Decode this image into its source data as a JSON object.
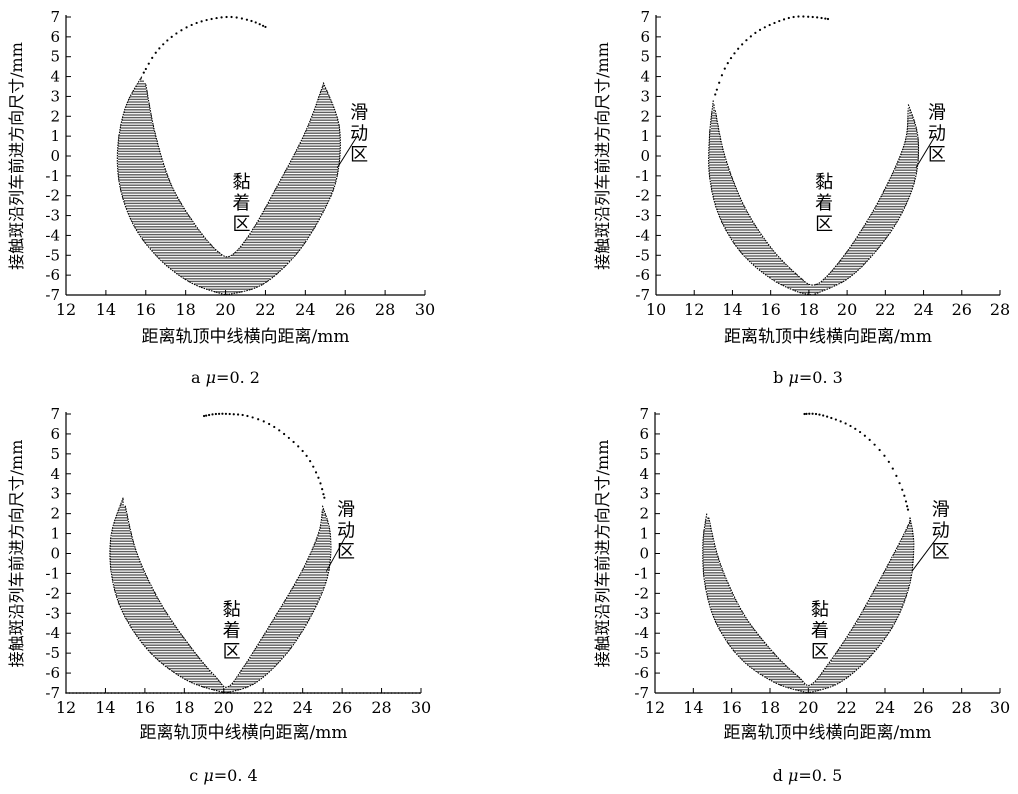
{
  "charts": [
    {
      "id": "a",
      "caption_letter": "a",
      "caption_value": "=0. 2",
      "xlabel": "距离轨顶中线横向距离/mm",
      "ylabel": "接触斑沿列车前进方向尺寸/mm",
      "xlim": [
        12,
        30
      ],
      "xticks": [
        12,
        14,
        16,
        18,
        20,
        22,
        24,
        26,
        28,
        30
      ],
      "ylim": [
        -7,
        7
      ],
      "yticks": [
        -7,
        -6,
        -5,
        -4,
        -3,
        -2,
        -1,
        0,
        1,
        2,
        3,
        4,
        5,
        6,
        7
      ],
      "slip_label": [
        "滑",
        "动",
        "区"
      ],
      "adhesion_label": [
        "黏",
        "着",
        "区"
      ]
    },
    {
      "id": "b",
      "caption_letter": "b",
      "caption_value": "=0. 3",
      "xlabel": "距离轨顶中线横向距离/mm",
      "ylabel": "接触斑沿列车前进方向尺寸/mm",
      "xlim": [
        10,
        28
      ],
      "xticks": [
        10,
        12,
        14,
        16,
        18,
        20,
        22,
        24,
        26,
        28
      ],
      "ylim": [
        -7,
        7
      ],
      "yticks": [
        -7,
        -6,
        -5,
        -4,
        -3,
        -2,
        -1,
        0,
        1,
        2,
        3,
        4,
        5,
        6,
        7
      ],
      "slip_label": [
        "滑",
        "动",
        "区"
      ],
      "adhesion_label": [
        "黏",
        "着",
        "区"
      ]
    },
    {
      "id": "c",
      "caption_letter": "c",
      "caption_value": "=0. 4",
      "xlabel": "距离轨顶中线横向距离/mm",
      "ylabel": "接触斑沿列车前进方向尺寸/mm",
      "xlim": [
        12,
        30
      ],
      "xticks": [
        12,
        14,
        16,
        18,
        20,
        22,
        24,
        26,
        28,
        30
      ],
      "ylim": [
        -7,
        7
      ],
      "yticks": [
        -7,
        -6,
        -5,
        -4,
        -3,
        -2,
        -1,
        0,
        1,
        2,
        3,
        4,
        5,
        6,
        7
      ],
      "slip_label": [
        "滑",
        "动",
        "区"
      ],
      "adhesion_label": [
        "黏",
        "着",
        "区"
      ]
    },
    {
      "id": "d",
      "caption_letter": "d",
      "caption_value": "=0. 5",
      "xlabel": "距离轨顶中线横向距离/mm",
      "ylabel": "接触斑沿列车前进方向尺寸/mm",
      "xlim": [
        12,
        30
      ],
      "xticks": [
        12,
        14,
        16,
        18,
        20,
        22,
        24,
        26,
        28,
        30
      ],
      "ylim": [
        -7,
        7
      ],
      "yticks": [
        -7,
        -6,
        -5,
        -4,
        -3,
        -2,
        -1,
        0,
        1,
        2,
        3,
        4,
        5,
        6,
        7
      ],
      "slip_label": [
        "滑",
        "动",
        "区"
      ],
      "adhesion_label": [
        "黏",
        "着",
        "区"
      ]
    }
  ],
  "mu_symbol": "μ",
  "chart_data": [
    {
      "type": "scatter",
      "panel": "a",
      "xlabel": "距离轨顶中线横向距离/mm",
      "ylabel": "接触斑沿列车前进方向尺寸/mm",
      "xlim": [
        12,
        30
      ],
      "ylim": [
        -7,
        7
      ],
      "slip_zone": {
        "left": [
          [
            15.8,
            4.0
          ],
          [
            15.0,
            2.5
          ],
          [
            14.6,
            0.5
          ],
          [
            14.7,
            -1.5
          ],
          [
            15.4,
            -3.5
          ],
          [
            16.7,
            -5.2
          ],
          [
            18.3,
            -6.4
          ],
          [
            20.0,
            -7.0
          ]
        ],
        "inner": [
          [
            16.0,
            3.6
          ],
          [
            16.5,
            1.0
          ],
          [
            17.3,
            -1.5
          ],
          [
            18.5,
            -3.5
          ],
          [
            19.6,
            -4.8
          ],
          [
            20.3,
            -5.0
          ],
          [
            21.3,
            -3.8
          ],
          [
            22.6,
            -1.5
          ],
          [
            24.0,
            1.2
          ],
          [
            24.9,
            3.6
          ]
        ],
        "right": [
          [
            24.9,
            3.7
          ],
          [
            25.7,
            1.5
          ],
          [
            25.6,
            -1.0
          ],
          [
            24.8,
            -3.0
          ],
          [
            23.5,
            -5.0
          ],
          [
            21.8,
            -6.5
          ],
          [
            20.0,
            -7.0
          ]
        ]
      },
      "adhesion_boundary": [
        [
          15.9,
          4.2
        ],
        [
          16.5,
          5.2
        ],
        [
          17.3,
          6.0
        ],
        [
          18.3,
          6.6
        ],
        [
          19.3,
          6.9
        ],
        [
          20.3,
          7.0
        ],
        [
          21.3,
          6.8
        ],
        [
          22.0,
          6.5
        ]
      ]
    },
    {
      "type": "scatter",
      "panel": "b",
      "xlabel": "距离轨顶中线横向距离/mm",
      "ylabel": "接触斑沿列车前进方向尺寸/mm",
      "xlim": [
        10,
        28
      ],
      "ylim": [
        -7,
        7
      ],
      "slip_zone": {
        "left": [
          [
            13.0,
            2.8
          ],
          [
            12.8,
            1.0
          ],
          [
            12.8,
            -1.0
          ],
          [
            13.3,
            -3.0
          ],
          [
            14.4,
            -4.8
          ],
          [
            15.9,
            -6.1
          ],
          [
            17.3,
            -6.8
          ],
          [
            18.2,
            -7.0
          ]
        ],
        "inner": [
          [
            13.1,
            2.3
          ],
          [
            13.6,
            0.0
          ],
          [
            14.6,
            -2.5
          ],
          [
            16.0,
            -4.6
          ],
          [
            17.4,
            -6.0
          ],
          [
            18.2,
            -6.5
          ],
          [
            19.0,
            -6.0
          ],
          [
            20.3,
            -4.4
          ],
          [
            21.8,
            -2.0
          ],
          [
            23.0,
            0.6
          ],
          [
            23.2,
            2.4
          ]
        ],
        "right": [
          [
            23.2,
            2.6
          ],
          [
            23.7,
            1.0
          ],
          [
            23.6,
            -1.0
          ],
          [
            22.8,
            -3.0
          ],
          [
            21.5,
            -4.8
          ],
          [
            20.0,
            -6.2
          ],
          [
            18.2,
            -7.0
          ]
        ]
      },
      "adhesion_boundary": [
        [
          13.1,
          3.1
        ],
        [
          13.6,
          4.4
        ],
        [
          14.3,
          5.4
        ],
        [
          15.2,
          6.2
        ],
        [
          16.2,
          6.7
        ],
        [
          17.2,
          7.0
        ],
        [
          18.2,
          7.0
        ],
        [
          19.0,
          6.9
        ]
      ]
    },
    {
      "type": "scatter",
      "panel": "c",
      "xlabel": "距离轨顶中线横向距离/mm",
      "ylabel": "接触斑沿列车前进方向尺寸/mm",
      "xlim": [
        12,
        30
      ],
      "ylim": [
        -7,
        7
      ],
      "slip_zone": {
        "left": [
          [
            14.9,
            2.8
          ],
          [
            14.3,
            1.0
          ],
          [
            14.3,
            -1.0
          ],
          [
            14.9,
            -3.0
          ],
          [
            16.3,
            -5.0
          ],
          [
            18.2,
            -6.4
          ],
          [
            20.1,
            -7.0
          ]
        ],
        "inner": [
          [
            15.0,
            2.4
          ],
          [
            15.6,
            0.0
          ],
          [
            16.8,
            -2.5
          ],
          [
            18.4,
            -4.8
          ],
          [
            19.6,
            -6.2
          ],
          [
            20.2,
            -6.7
          ],
          [
            21.0,
            -5.7
          ],
          [
            22.4,
            -3.5
          ],
          [
            23.9,
            -1.0
          ],
          [
            24.8,
            1.0
          ],
          [
            25.0,
            2.2
          ]
        ],
        "right": [
          [
            25.0,
            2.4
          ],
          [
            25.4,
            1.0
          ],
          [
            25.3,
            -1.0
          ],
          [
            24.5,
            -3.0
          ],
          [
            23.2,
            -5.0
          ],
          [
            21.6,
            -6.5
          ],
          [
            20.1,
            -7.0
          ]
        ]
      },
      "adhesion_boundary": [
        [
          19.0,
          6.9
        ],
        [
          19.6,
          7.0
        ],
        [
          20.3,
          7.0
        ],
        [
          21.2,
          6.9
        ],
        [
          22.3,
          6.5
        ],
        [
          23.3,
          5.8
        ],
        [
          24.2,
          4.9
        ],
        [
          24.8,
          3.8
        ],
        [
          25.1,
          2.8
        ]
      ],
      "baseline_y": -7
    },
    {
      "type": "scatter",
      "panel": "d",
      "xlabel": "距离轨顶中线横向距离/mm",
      "ylabel": "接触斑沿列车前进方向尺寸/mm",
      "xlim": [
        12,
        30
      ],
      "ylim": [
        -7,
        7
      ],
      "slip_zone": {
        "left": [
          [
            14.7,
            2.0
          ],
          [
            14.5,
            0.5
          ],
          [
            14.6,
            -1.5
          ],
          [
            15.2,
            -3.5
          ],
          [
            16.5,
            -5.3
          ],
          [
            18.3,
            -6.5
          ],
          [
            20.0,
            -7.0
          ]
        ],
        "inner": [
          [
            14.8,
            1.8
          ],
          [
            15.4,
            -0.5
          ],
          [
            16.6,
            -3.0
          ],
          [
            18.2,
            -5.0
          ],
          [
            19.5,
            -6.2
          ],
          [
            20.1,
            -6.6
          ],
          [
            21.0,
            -5.6
          ],
          [
            22.4,
            -3.6
          ],
          [
            23.8,
            -1.2
          ],
          [
            24.9,
            0.8
          ],
          [
            25.3,
            1.6
          ]
        ],
        "right": [
          [
            25.3,
            1.8
          ],
          [
            25.5,
            0.5
          ],
          [
            25.3,
            -1.5
          ],
          [
            24.5,
            -3.5
          ],
          [
            23.2,
            -5.2
          ],
          [
            21.6,
            -6.5
          ],
          [
            20.0,
            -7.0
          ]
        ]
      },
      "adhesion_boundary": [
        [
          19.8,
          7.0
        ],
        [
          20.4,
          7.0
        ],
        [
          21.2,
          6.8
        ],
        [
          22.2,
          6.4
        ],
        [
          23.2,
          5.7
        ],
        [
          24.2,
          4.6
        ],
        [
          24.9,
          3.2
        ],
        [
          25.2,
          2.2
        ]
      ]
    }
  ]
}
